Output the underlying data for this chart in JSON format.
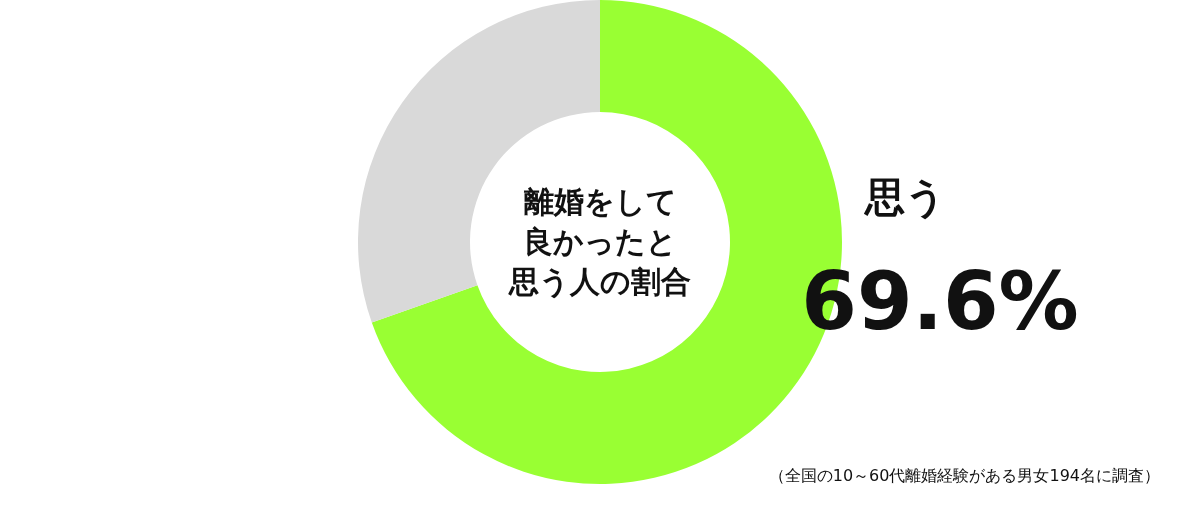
{
  "chart_data": {
    "type": "donut",
    "title": "離婚をして良かったと思う人の割合",
    "categories": [
      "思う",
      null
    ],
    "values": [
      69.6,
      30.4
    ],
    "colors": [
      "#99ff33",
      "#d9d9d9"
    ],
    "value_labels": [
      "69.6%",
      null
    ],
    "annotations": [
      "（全国の10～60代離婚経験がある男女194名に調査）"
    ]
  }
}
